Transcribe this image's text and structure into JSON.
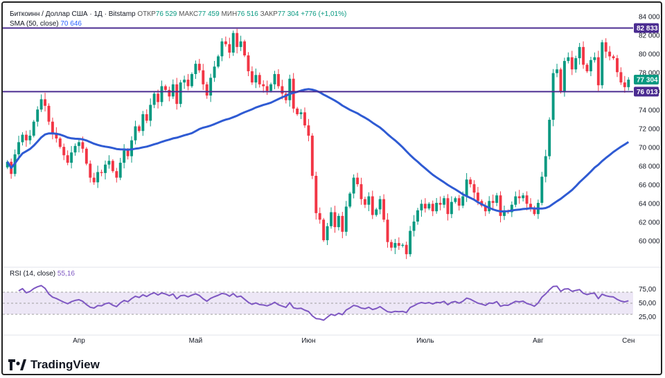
{
  "header": {
    "symbol": "Биткоинн / Доллар США · 1Д · Bitstamp",
    "open_label": "ОТКР",
    "open_value": "76 529",
    "high_label": "МАКС",
    "high_value": "77 459",
    "low_label": "МИН",
    "low_value": "76 516",
    "close_label": "ЗАКР",
    "close_value": "77 304",
    "change": "+776 (+1,01%)",
    "sma_label": "SMA (50, close)",
    "sma_value": "70 646",
    "rsi_label": "RSI (14, close)",
    "rsi_value": "55,16"
  },
  "brand": {
    "name": "TradingView"
  },
  "colors": {
    "up": "#089981",
    "down": "#f23645",
    "sma": "#2f5bd3",
    "level": "#4b2c91",
    "rsi": "#7e57c2",
    "rsi_band": "#ede7f6",
    "price_tag": "#089981"
  },
  "chart_data": [
    {
      "type": "candlestick",
      "title": "Биткоинн / Доллар США · 1Д · Bitstamp",
      "ylim": [
        57500,
        84500
      ],
      "y_ticks": [
        "84 000",
        "82 000",
        "80 000",
        "78 000",
        "76 000",
        "74 000",
        "72 000",
        "70 000",
        "68 000",
        "66 000",
        "64 000",
        "62 000",
        "60 000"
      ],
      "x_labels": [
        "Апр",
        "Май",
        "Июн",
        "Июль",
        "Авг",
        "Сен"
      ],
      "horizontal_levels": [
        {
          "value": 82833,
          "label": "82 833"
        },
        {
          "value": 76013,
          "label": "76 013"
        }
      ],
      "last_price": {
        "value": 77304,
        "label": "77 304"
      },
      "ohlc_close": [
        68500,
        67200,
        69300,
        70600,
        71400,
        70800,
        71300,
        72800,
        74100,
        75200,
        74500,
        72800,
        71600,
        71000,
        70100,
        69200,
        68400,
        69500,
        70200,
        70600,
        69900,
        68300,
        66800,
        66300,
        67400,
        67300,
        68200,
        68600,
        67500,
        66800,
        68400,
        69700,
        69100,
        70800,
        72300,
        71800,
        73600,
        72900,
        74600,
        75800,
        74900,
        76600,
        76200,
        75500,
        76800,
        74700,
        77000,
        77300,
        76600,
        77900,
        79000,
        78300,
        76800,
        75600,
        77500,
        78700,
        79800,
        81400,
        81100,
        80200,
        82300,
        80800,
        81400,
        79900,
        78200,
        77000,
        77800,
        76800,
        76600,
        76100,
        76800,
        77900,
        76600,
        75800,
        75100,
        77400,
        74200,
        73600,
        73800,
        72400,
        71300,
        67000,
        63000,
        62300,
        60100,
        61600,
        63100,
        61500,
        62700,
        61000,
        63700,
        65100,
        66800,
        66100,
        64500,
        63900,
        64800,
        62800,
        63400,
        64500,
        62300,
        59900,
        59300,
        59800,
        59500,
        59600,
        58600,
        61100,
        62100,
        63300,
        64000,
        63500,
        64000,
        63200,
        64100,
        63900,
        64600,
        62900,
        64200,
        64600,
        63800,
        64800,
        66600,
        66100,
        65200,
        64300,
        63800,
        63200,
        64300,
        64100,
        64900,
        62700,
        63200,
        63100,
        63900,
        64800,
        64600,
        64900,
        64000,
        63600,
        62900,
        64100,
        66900,
        69100,
        73000,
        78000,
        78400,
        76000,
        79300,
        79700,
        78400,
        79600,
        80800,
        78900,
        78200,
        79400,
        79700,
        76700,
        81300,
        80300,
        79800,
        79600,
        78100,
        77000,
        76500,
        77300
      ]
    },
    {
      "type": "line",
      "title": "RSI (14, close)",
      "ylim": [
        0,
        100
      ],
      "y_ticks": [
        "75,00",
        "50,00",
        "25,00"
      ],
      "band": [
        30,
        70
      ],
      "levels": [
        70,
        50,
        30
      ],
      "series": [
        {
          "name": "RSI (14, close)"
        }
      ]
    }
  ]
}
